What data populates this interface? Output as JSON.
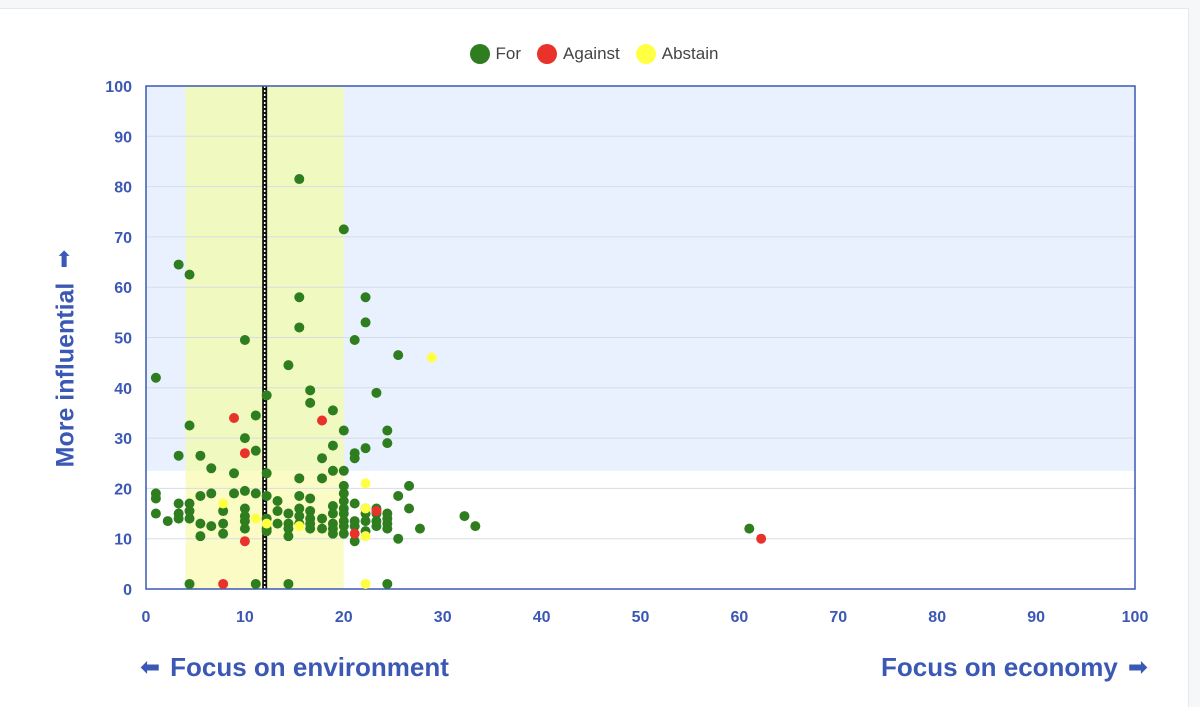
{
  "legend": [
    {
      "name": "For",
      "color": "#2e7d1f"
    },
    {
      "name": "Against",
      "color": "#e8322a"
    },
    {
      "name": "Abstain",
      "color": "#ffff44"
    }
  ],
  "labels": {
    "y_axis": "More influential",
    "left_caption": "Focus on environment",
    "right_caption": "Focus on economy",
    "up_arrow_icon": "arrow-up",
    "left_arrow_icon": "arrow-left",
    "right_arrow_icon": "arrow-right"
  },
  "colors": {
    "background_band": "#e8f1fd",
    "highlight_band": "#f0f9c0",
    "highlight_band_low": "#fbfbc6",
    "axis": "#3c58b5",
    "tick_text": "#3c58b5"
  },
  "chart_data": {
    "type": "scatter",
    "xlim": [
      0,
      100
    ],
    "ylim": [
      0,
      100
    ],
    "xticks": [
      0,
      10,
      20,
      30,
      40,
      50,
      60,
      70,
      80,
      90,
      100
    ],
    "yticks": [
      0,
      10,
      20,
      30,
      40,
      50,
      60,
      70,
      80,
      90,
      100
    ],
    "grid": true,
    "legend_placement": "top-center",
    "shaded_region_above_y": 23.5,
    "highlight_x_range": [
      4,
      20
    ],
    "reference_line_x": 12,
    "series": [
      {
        "name": "For",
        "color": "#2e7d1f",
        "points": [
          [
            1,
            42
          ],
          [
            1,
            19
          ],
          [
            1,
            18
          ],
          [
            1,
            15
          ],
          [
            2.2,
            13.5
          ],
          [
            3.3,
            64.5
          ],
          [
            3.3,
            26.5
          ],
          [
            3.3,
            17
          ],
          [
            3.3,
            15
          ],
          [
            3.3,
            14
          ],
          [
            4.4,
            62.5
          ],
          [
            4.4,
            32.5
          ],
          [
            4.4,
            17
          ],
          [
            4.4,
            15.5
          ],
          [
            4.4,
            14
          ],
          [
            4.4,
            1
          ],
          [
            5.5,
            26.5
          ],
          [
            5.5,
            18.5
          ],
          [
            5.5,
            13
          ],
          [
            5.5,
            10.5
          ],
          [
            6.6,
            24
          ],
          [
            6.6,
            19
          ],
          [
            6.6,
            12.5
          ],
          [
            7.8,
            15.5
          ],
          [
            7.8,
            13
          ],
          [
            7.8,
            11
          ],
          [
            8.9,
            23
          ],
          [
            8.9,
            19
          ],
          [
            10,
            49.5
          ],
          [
            10,
            30
          ],
          [
            10,
            19.5
          ],
          [
            10,
            16
          ],
          [
            10,
            14.5
          ],
          [
            10,
            13.5
          ],
          [
            10,
            12
          ],
          [
            11.1,
            34.5
          ],
          [
            11.1,
            27.5
          ],
          [
            11.1,
            19
          ],
          [
            11.1,
            1
          ],
          [
            12.2,
            38.5
          ],
          [
            12.2,
            23
          ],
          [
            12.2,
            18.5
          ],
          [
            12.2,
            14
          ],
          [
            12.2,
            12
          ],
          [
            12.2,
            11.5
          ],
          [
            13.3,
            17.5
          ],
          [
            13.3,
            15.5
          ],
          [
            13.3,
            13
          ],
          [
            14.4,
            44.5
          ],
          [
            14.4,
            15
          ],
          [
            14.4,
            13
          ],
          [
            14.4,
            12
          ],
          [
            14.4,
            10.5
          ],
          [
            14.4,
            1
          ],
          [
            15.5,
            81.5
          ],
          [
            15.5,
            58
          ],
          [
            15.5,
            52
          ],
          [
            15.5,
            22
          ],
          [
            15.5,
            18.5
          ],
          [
            15.5,
            16
          ],
          [
            15.5,
            14.5
          ],
          [
            15.5,
            13
          ],
          [
            16.6,
            39.5
          ],
          [
            16.6,
            37
          ],
          [
            16.6,
            18
          ],
          [
            16.6,
            15.5
          ],
          [
            16.6,
            14
          ],
          [
            16.6,
            13
          ],
          [
            16.6,
            12
          ],
          [
            17.8,
            26
          ],
          [
            17.8,
            22
          ],
          [
            17.8,
            14
          ],
          [
            17.8,
            12
          ],
          [
            18.9,
            35.5
          ],
          [
            18.9,
            28.5
          ],
          [
            18.9,
            23.5
          ],
          [
            18.9,
            16.5
          ],
          [
            18.9,
            15
          ],
          [
            18.9,
            13
          ],
          [
            18.9,
            12
          ],
          [
            18.9,
            11
          ],
          [
            20,
            71.5
          ],
          [
            20,
            31.5
          ],
          [
            20,
            23.5
          ],
          [
            20,
            20.5
          ],
          [
            20,
            19
          ],
          [
            20,
            17.5
          ],
          [
            20,
            16
          ],
          [
            20,
            15
          ],
          [
            20,
            13.5
          ],
          [
            20,
            12.5
          ],
          [
            20,
            11
          ],
          [
            21.1,
            49.5
          ],
          [
            21.1,
            27
          ],
          [
            21.1,
            26
          ],
          [
            21.1,
            17
          ],
          [
            21.1,
            13.5
          ],
          [
            21.1,
            12.5
          ],
          [
            21.1,
            9.5
          ],
          [
            22.2,
            58
          ],
          [
            22.2,
            53
          ],
          [
            22.2,
            28
          ],
          [
            22.2,
            16
          ],
          [
            22.2,
            15
          ],
          [
            22.2,
            13.5
          ],
          [
            22.2,
            11.5
          ],
          [
            23.3,
            39
          ],
          [
            23.3,
            16
          ],
          [
            23.3,
            15
          ],
          [
            23.3,
            13.5
          ],
          [
            23.3,
            12.5
          ],
          [
            24.4,
            31.5
          ],
          [
            24.4,
            29
          ],
          [
            24.4,
            15
          ],
          [
            24.4,
            14
          ],
          [
            24.4,
            13
          ],
          [
            24.4,
            12
          ],
          [
            24.4,
            1
          ],
          [
            25.5,
            46.5
          ],
          [
            25.5,
            18.5
          ],
          [
            25.5,
            10
          ],
          [
            26.6,
            20.5
          ],
          [
            26.6,
            16
          ],
          [
            27.7,
            12
          ],
          [
            32.2,
            14.5
          ],
          [
            33.3,
            12.5
          ],
          [
            61,
            12
          ]
        ]
      },
      {
        "name": "Against",
        "color": "#e8322a",
        "points": [
          [
            8.9,
            34
          ],
          [
            10,
            27
          ],
          [
            10,
            9.5
          ],
          [
            7.8,
            1
          ],
          [
            17.8,
            33.5
          ],
          [
            21.1,
            11
          ],
          [
            23.3,
            15.5
          ],
          [
            62.2,
            10
          ]
        ]
      },
      {
        "name": "Abstain",
        "color": "#ffff44",
        "points": [
          [
            7.8,
            17
          ],
          [
            11.1,
            14
          ],
          [
            12.2,
            13
          ],
          [
            15.5,
            12.5
          ],
          [
            22.2,
            21
          ],
          [
            22.2,
            16
          ],
          [
            22.2,
            10.5
          ],
          [
            22.2,
            1
          ],
          [
            28.9,
            46
          ]
        ]
      }
    ]
  }
}
